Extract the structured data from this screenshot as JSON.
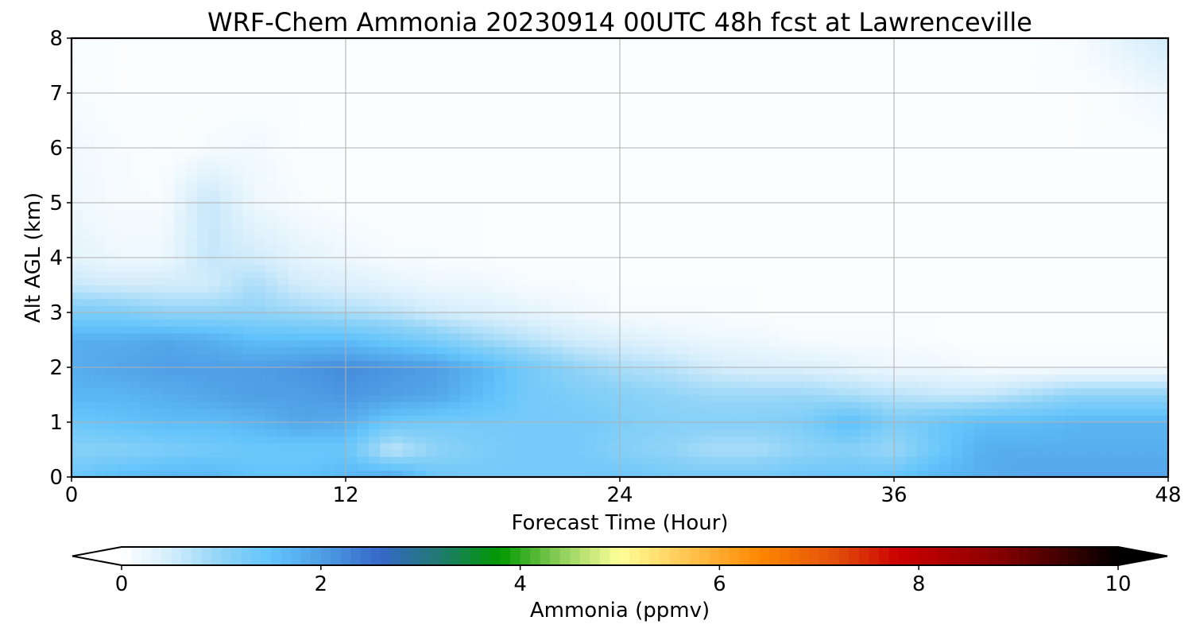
{
  "chart_data": {
    "type": "heatmap",
    "title": "WRF-Chem Ammonia  20230914 00UTC 48h fcst at Lawrenceville",
    "xlabel": "Forecast Time (Hour)",
    "ylabel": "Alt AGL (km)",
    "xlim": [
      0,
      48
    ],
    "ylim": [
      0,
      8
    ],
    "x_ticks": [
      0,
      12,
      24,
      36,
      48
    ],
    "y_ticks": [
      0,
      1,
      2,
      3,
      4,
      5,
      6,
      7,
      8
    ],
    "grid": true,
    "x_hours": [
      0,
      2,
      4,
      6,
      8,
      10,
      12,
      14,
      16,
      18,
      20,
      22,
      24,
      26,
      28,
      30,
      32,
      34,
      36,
      38,
      40,
      42,
      44,
      46,
      48
    ],
    "z_km": [
      0,
      0.5,
      1,
      1.5,
      2,
      2.5,
      3,
      3.5,
      4,
      5,
      6,
      7,
      8
    ],
    "values_ppmv": [
      [
        1.4,
        1.6,
        1.7,
        1.7,
        1.5,
        1.5,
        1.7,
        1.9,
        1.4,
        1.3,
        1.3,
        1.3,
        1.4,
        1.3,
        1.3,
        1.3,
        1.4,
        1.4,
        1.5,
        1.7,
        1.8,
        1.9,
        1.9,
        1.9,
        1.9
      ],
      [
        1.1,
        1.1,
        1.2,
        1.3,
        1.4,
        1.4,
        1.4,
        0.6,
        1.0,
        1.2,
        1.3,
        1.3,
        1.1,
        1.0,
        0.8,
        0.8,
        1.0,
        1.1,
        0.9,
        1.4,
        1.8,
        1.8,
        1.8,
        1.8,
        1.8
      ],
      [
        1.4,
        1.5,
        1.6,
        1.6,
        1.7,
        1.9,
        1.8,
        1.4,
        1.3,
        1.3,
        1.3,
        1.3,
        1.2,
        1.1,
        1.1,
        1.1,
        1.2,
        1.6,
        1.2,
        1.4,
        1.6,
        1.6,
        1.7,
        1.7,
        1.7
      ],
      [
        1.7,
        1.7,
        1.8,
        1.9,
        2.0,
        2.0,
        2.1,
        2.0,
        1.9,
        1.6,
        1.3,
        1.2,
        1.1,
        1.0,
        0.9,
        0.9,
        0.9,
        0.8,
        0.7,
        0.6,
        0.6,
        0.8,
        1.0,
        1.0,
        1.0
      ],
      [
        1.8,
        1.9,
        2.0,
        2.0,
        2.0,
        2.1,
        2.2,
        2.1,
        2.0,
        1.7,
        1.3,
        1.0,
        0.8,
        0.7,
        0.5,
        0.4,
        0.4,
        0.3,
        0.2,
        0.2,
        0.1,
        0.1,
        0.1,
        0.1,
        0.1
      ],
      [
        1.8,
        1.8,
        1.9,
        1.8,
        1.6,
        1.6,
        1.6,
        1.4,
        1.2,
        0.9,
        0.7,
        0.5,
        0.4,
        0.3,
        0.2,
        0.2,
        0.1,
        0.1,
        0.1,
        0.05,
        0.05,
        0.05,
        0.05,
        0.05,
        0.05
      ],
      [
        1.2,
        1.2,
        1.0,
        1.0,
        1.0,
        0.9,
        0.8,
        0.7,
        0.5,
        0.4,
        0.3,
        0.2,
        0.1,
        0.1,
        0.1,
        0.05,
        0.05,
        0.05,
        0.05,
        0.05,
        0.05,
        0.05,
        0.05,
        0.05,
        0.05
      ],
      [
        0.6,
        0.5,
        0.5,
        0.5,
        0.8,
        0.5,
        0.4,
        0.3,
        0.2,
        0.2,
        0.1,
        0.1,
        0.05,
        0.05,
        0.05,
        0.05,
        0.05,
        0.05,
        0.05,
        0.05,
        0.05,
        0.05,
        0.05,
        0.05,
        0.05
      ],
      [
        0.3,
        0.2,
        0.2,
        0.6,
        0.5,
        0.3,
        0.2,
        0.1,
        0.1,
        0.05,
        0.05,
        0.05,
        0.05,
        0.05,
        0.05,
        0.05,
        0.05,
        0.05,
        0.05,
        0.05,
        0.05,
        0.05,
        0.05,
        0.05,
        0.05
      ],
      [
        0.2,
        0.1,
        0.1,
        0.6,
        0.2,
        0.1,
        0.05,
        0.05,
        0.05,
        0.05,
        0.05,
        0.05,
        0.05,
        0.05,
        0.05,
        0.05,
        0.05,
        0.05,
        0.05,
        0.05,
        0.05,
        0.05,
        0.05,
        0.05,
        0.05
      ],
      [
        0.15,
        0.1,
        0.05,
        0.1,
        0.15,
        0.05,
        0.05,
        0.05,
        0.05,
        0.05,
        0.05,
        0.05,
        0.05,
        0.05,
        0.05,
        0.05,
        0.05,
        0.05,
        0.05,
        0.05,
        0.05,
        0.05,
        0.05,
        0.05,
        0.05
      ],
      [
        0.1,
        0.05,
        0.05,
        0.05,
        0.05,
        0.05,
        0.05,
        0.05,
        0.05,
        0.05,
        0.05,
        0.05,
        0.05,
        0.05,
        0.05,
        0.05,
        0.05,
        0.05,
        0.05,
        0.05,
        0.05,
        0.05,
        0.05,
        0.1,
        0.2
      ],
      [
        0.05,
        0.05,
        0.05,
        0.05,
        0.05,
        0.05,
        0.05,
        0.05,
        0.05,
        0.05,
        0.05,
        0.05,
        0.05,
        0.05,
        0.05,
        0.05,
        0.05,
        0.05,
        0.05,
        0.05,
        0.05,
        0.05,
        0.1,
        0.3,
        0.5
      ]
    ],
    "colorbar": {
      "label": "Ammonia  (ppmv)",
      "min": 0,
      "max": 10,
      "ticks": [
        0,
        2,
        4,
        6,
        8,
        10
      ],
      "extend": "both",
      "color_stops": [
        {
          "value": 0,
          "color": "#ffffff"
        },
        {
          "value": 0.5,
          "color": "#d2ecfb"
        },
        {
          "value": 1.0,
          "color": "#8fd3f7"
        },
        {
          "value": 1.5,
          "color": "#63c4fb"
        },
        {
          "value": 2.0,
          "color": "#4f9fe6"
        },
        {
          "value": 2.6,
          "color": "#3567c7"
        },
        {
          "value": 3.2,
          "color": "#1f7a6e"
        },
        {
          "value": 3.8,
          "color": "#009900"
        },
        {
          "value": 4.4,
          "color": "#8dcf5a"
        },
        {
          "value": 5.0,
          "color": "#ffff99"
        },
        {
          "value": 5.8,
          "color": "#ffbb44"
        },
        {
          "value": 6.4,
          "color": "#ff8800"
        },
        {
          "value": 7.2,
          "color": "#e04c0a"
        },
        {
          "value": 7.8,
          "color": "#cc0000"
        },
        {
          "value": 8.8,
          "color": "#880000"
        },
        {
          "value": 10,
          "color": "#000000"
        }
      ],
      "under_color": "#ffffff",
      "over_color": "#000000"
    }
  }
}
